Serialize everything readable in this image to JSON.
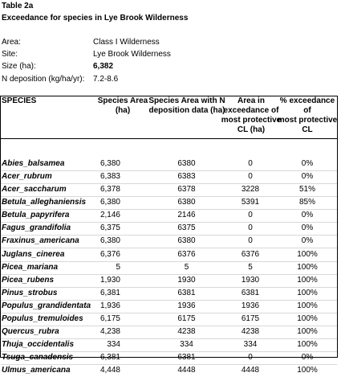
{
  "title": {
    "line1": "Table 2a",
    "line2": "Exceedance for species in Lye Brook Wilderness"
  },
  "meta": [
    {
      "label": "Area:",
      "value": "Class I Wilderness",
      "bold": false
    },
    {
      "label": "Site:",
      "value": "Lye Brook Wilderness",
      "bold": false
    },
    {
      "label": "Size (ha):",
      "value": "6,382",
      "bold": true
    },
    {
      "label": "N deposition (kg/ha/yr):",
      "value": "7.2-8.6",
      "bold": false
    }
  ],
  "headers": {
    "species": "SPECIES",
    "area": "Species Area\n(ha)",
    "dep": "Species Area with N\ndeposition data (ha)",
    "exc": "Area in\nexceedance of\nmost protective\nCL (ha)",
    "pct": "% exceedance of\nmost protective\nCL"
  },
  "rows": [
    {
      "species": "Abies_balsamea",
      "area": "6,380",
      "dep": "6380",
      "exc": "0",
      "pct": "0%"
    },
    {
      "species": "Acer_rubrum",
      "area": "6,383",
      "dep": "6383",
      "exc": "0",
      "pct": "0%"
    },
    {
      "species": "Acer_saccharum",
      "area": "6,378",
      "dep": "6378",
      "exc": "3228",
      "pct": "51%"
    },
    {
      "species": "Betula_alleghaniensis",
      "area": "6,380",
      "dep": "6380",
      "exc": "5391",
      "pct": "85%"
    },
    {
      "species": "Betula_papyrifera",
      "area": "2,146",
      "dep": "2146",
      "exc": "0",
      "pct": "0%"
    },
    {
      "species": "Fagus_grandifolia",
      "area": "6,375",
      "dep": "6375",
      "exc": "0",
      "pct": "0%"
    },
    {
      "species": "Fraxinus_americana",
      "area": "6,380",
      "dep": "6380",
      "exc": "0",
      "pct": "0%"
    },
    {
      "species": "Juglans_cinerea",
      "area": "6,376",
      "dep": "6376",
      "exc": "6376",
      "pct": "100%"
    },
    {
      "species": "Picea_mariana",
      "area": "5",
      "dep": "5",
      "exc": "5",
      "pct": "100%"
    },
    {
      "species": "Picea_rubens",
      "area": "1,930",
      "dep": "1930",
      "exc": "1930",
      "pct": "100%"
    },
    {
      "species": "Pinus_strobus",
      "area": "6,381",
      "dep": "6381",
      "exc": "6381",
      "pct": "100%"
    },
    {
      "species": "Populus_grandidentata",
      "area": "1,936",
      "dep": "1936",
      "exc": "1936",
      "pct": "100%"
    },
    {
      "species": "Populus_tremuloides",
      "area": "6,175",
      "dep": "6175",
      "exc": "6175",
      "pct": "100%"
    },
    {
      "species": "Quercus_rubra",
      "area": "4,238",
      "dep": "4238",
      "exc": "4238",
      "pct": "100%"
    },
    {
      "species": "Thuja_occidentalis",
      "area": "334",
      "dep": "334",
      "exc": "334",
      "pct": "100%"
    },
    {
      "species": "Tsuga_canadensis",
      "area": "6,381",
      "dep": "6381",
      "exc": "0",
      "pct": "0%"
    },
    {
      "species": "Ulmus_americana",
      "area": "4,448",
      "dep": "4448",
      "exc": "4448",
      "pct": "100%"
    }
  ]
}
